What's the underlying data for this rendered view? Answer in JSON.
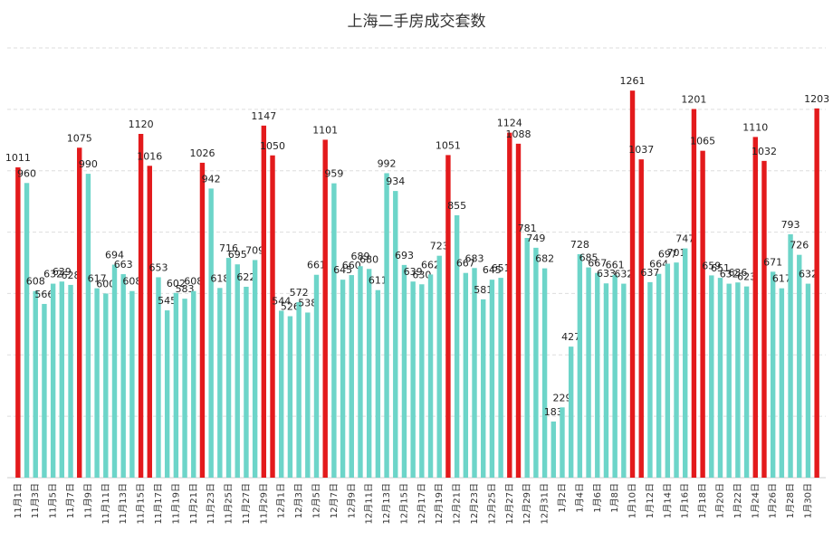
{
  "chart_data": {
    "type": "bar",
    "title": "上海二手房成交套数",
    "categories": [
      "11月1日",
      null,
      "11月3日",
      null,
      "11月5日",
      null,
      "11月7日",
      null,
      "11月9日",
      null,
      "11月11日",
      null,
      "11月13日",
      null,
      "11月15日",
      null,
      "11月17日",
      null,
      "11月19日",
      null,
      "11月21日",
      null,
      "11月23日",
      null,
      "11月25日",
      null,
      "11月27日",
      null,
      "11月29日",
      null,
      "12月1日",
      null,
      "12月3日",
      null,
      "12月5日",
      null,
      "12月7日",
      null,
      "12月9日",
      null,
      "12月11日",
      null,
      "12月13日",
      null,
      "12月15日",
      null,
      "12月17日",
      null,
      "12月19日",
      null,
      "12月21日",
      null,
      "12月23日",
      null,
      "12月25日",
      null,
      "12月27日",
      null,
      "12月29日",
      null,
      "12月31日",
      null,
      "1月2日",
      null,
      "1月4日",
      null,
      "1月6日",
      null,
      "1月8日",
      null,
      "1月10日",
      null,
      "1月12日",
      null,
      "1月14日",
      null,
      "1月16日",
      null,
      "1月18日",
      null,
      "1月20日",
      null,
      "1月22日",
      null,
      "1月24日",
      null,
      "1月26日",
      null,
      "1月28日",
      null,
      "1月30日",
      null
    ],
    "values": [
      1011,
      960,
      608,
      566,
      632,
      639,
      628,
      1075,
      990,
      617,
      600,
      694,
      663,
      608,
      1120,
      1016,
      653,
      545,
      602,
      583,
      608,
      1026,
      942,
      618,
      716,
      695,
      622,
      709,
      1147,
      1050,
      544,
      526,
      572,
      538,
      661,
      1101,
      959,
      645,
      660,
      689,
      680,
      611,
      992,
      934,
      693,
      639,
      630,
      662,
      723,
      1051,
      855,
      667,
      683,
      581,
      645,
      651,
      1124,
      1088,
      781,
      749,
      682,
      183,
      229,
      427,
      728,
      685,
      667,
      633,
      661,
      632,
      1261,
      1037,
      637,
      664,
      697,
      701,
      747,
      1201,
      1065,
      659,
      651,
      632,
      636,
      623,
      1110,
      1032,
      671,
      617,
      793,
      726,
      632,
      1203
    ],
    "colors": [
      "#e31a1c",
      "#6dd5c9",
      "#6dd5c9",
      "#6dd5c9",
      "#6dd5c9",
      "#6dd5c9",
      "#6dd5c9",
      "#e31a1c",
      "#6dd5c9",
      "#6dd5c9",
      "#6dd5c9",
      "#6dd5c9",
      "#6dd5c9",
      "#6dd5c9",
      "#e31a1c",
      "#e31a1c",
      "#6dd5c9",
      "#6dd5c9",
      "#6dd5c9",
      "#6dd5c9",
      "#6dd5c9",
      "#e31a1c",
      "#6dd5c9",
      "#6dd5c9",
      "#6dd5c9",
      "#6dd5c9",
      "#6dd5c9",
      "#6dd5c9",
      "#e31a1c",
      "#e31a1c",
      "#6dd5c9",
      "#6dd5c9",
      "#6dd5c9",
      "#6dd5c9",
      "#6dd5c9",
      "#e31a1c",
      "#6dd5c9",
      "#6dd5c9",
      "#6dd5c9",
      "#6dd5c9",
      "#6dd5c9",
      "#6dd5c9",
      "#6dd5c9",
      "#6dd5c9",
      "#6dd5c9",
      "#6dd5c9",
      "#6dd5c9",
      "#6dd5c9",
      "#6dd5c9",
      "#e31a1c",
      "#6dd5c9",
      "#6dd5c9",
      "#6dd5c9",
      "#6dd5c9",
      "#6dd5c9",
      "#6dd5c9",
      "#e31a1c",
      "#e31a1c",
      "#6dd5c9",
      "#6dd5c9",
      "#6dd5c9",
      "#6dd5c9",
      "#6dd5c9",
      "#6dd5c9",
      "#6dd5c9",
      "#6dd5c9",
      "#6dd5c9",
      "#6dd5c9",
      "#6dd5c9",
      "#6dd5c9",
      "#e31a1c",
      "#e31a1c",
      "#6dd5c9",
      "#6dd5c9",
      "#6dd5c9",
      "#6dd5c9",
      "#6dd5c9",
      "#e31a1c",
      "#e31a1c",
      "#6dd5c9",
      "#6dd5c9",
      "#6dd5c9",
      "#6dd5c9",
      "#6dd5c9",
      "#e31a1c",
      "#e31a1c",
      "#6dd5c9",
      "#6dd5c9",
      "#6dd5c9",
      "#6dd5c9",
      "#6dd5c9",
      "#e31a1c"
    ],
    "ylim": [
      0,
      1400
    ],
    "yticks": [
      0,
      200,
      400,
      600,
      800,
      1000,
      1200,
      1400
    ],
    "grid": true
  }
}
